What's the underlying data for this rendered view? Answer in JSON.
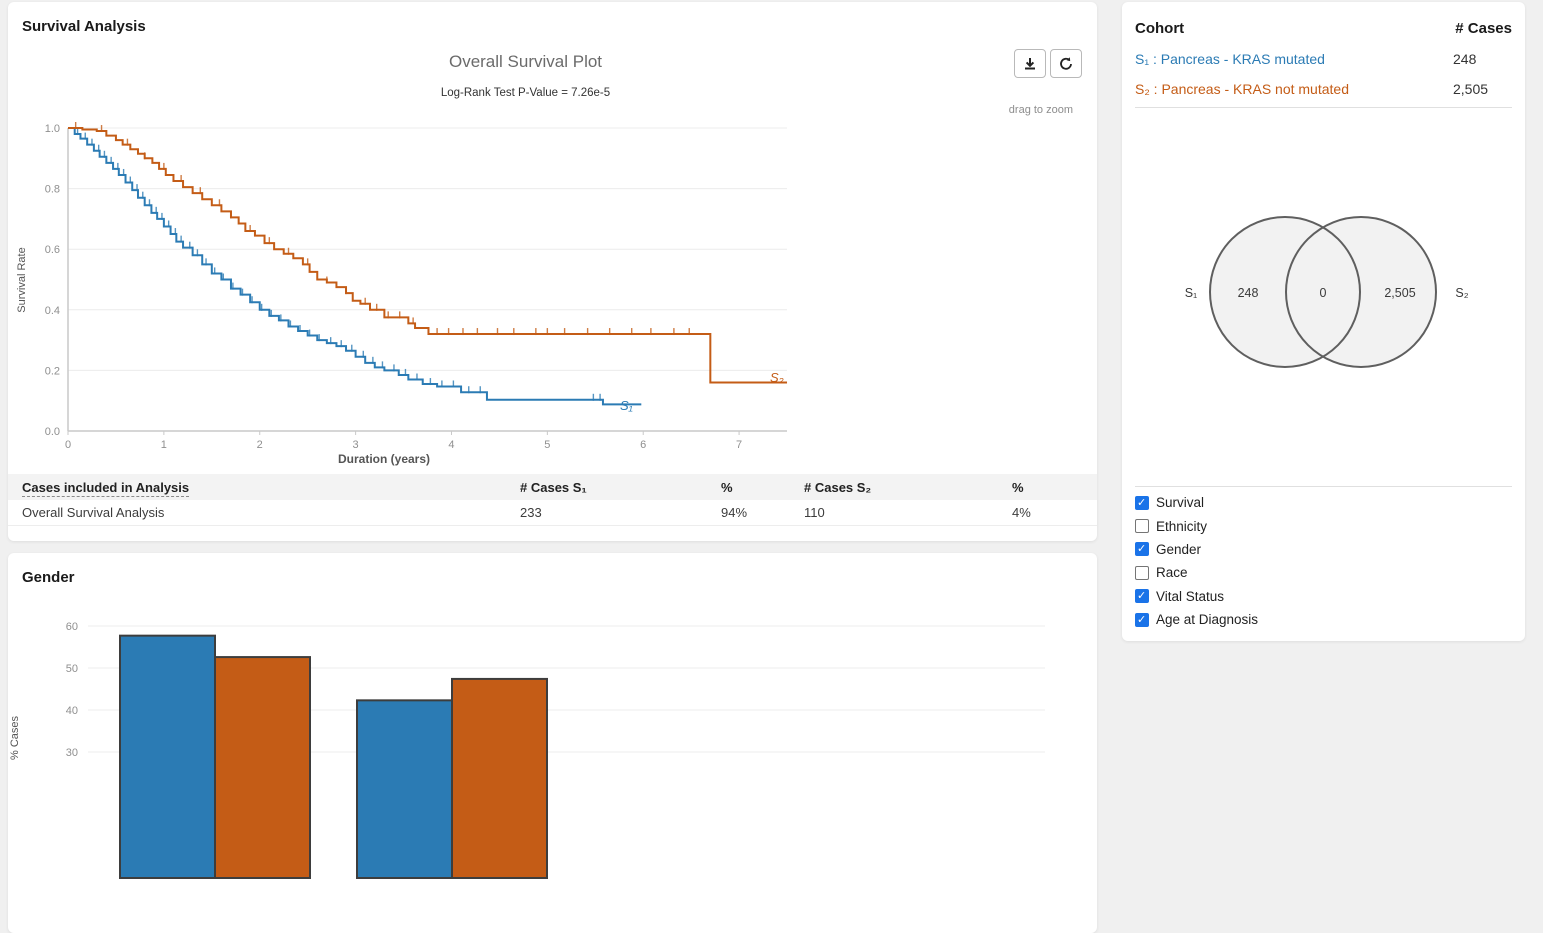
{
  "colors": {
    "s1": "#2b7bb4",
    "s2": "#c45c16",
    "checkbox_checked": "#1a73e8",
    "page_bg": "#f0f0f0",
    "table_header_bg": "#f3f3f3"
  },
  "survival_panel": {
    "title": "Survival Analysis",
    "plot_title": "Overall Survival Plot",
    "pvalue": "Log-Rank Test P-Value = 7.26e-5",
    "drag_hint": "drag to zoom",
    "xlabel": "Duration (years)",
    "ylabel": "Survival Rate"
  },
  "cases_table": {
    "headers": [
      "Cases included in Analysis",
      "# Cases S₁",
      "%",
      "# Cases S₂",
      "%"
    ],
    "rows": [
      [
        "Overall Survival Analysis",
        "233",
        "94%",
        "110",
        "4%"
      ]
    ]
  },
  "gender_panel": {
    "title": "Gender"
  },
  "cohort_panel": {
    "title": "Cohort",
    "cases_header": "# Cases",
    "rows": [
      {
        "label": "S₁ : Pancreas - KRAS mutated",
        "count": "248"
      },
      {
        "label": "S₂ : Pancreas - KRAS not mutated",
        "count": "2,505"
      }
    ]
  },
  "filters": {
    "items": [
      {
        "label": "Survival",
        "checked": true
      },
      {
        "label": "Ethnicity",
        "checked": false
      },
      {
        "label": "Gender",
        "checked": true
      },
      {
        "label": "Race",
        "checked": false
      },
      {
        "label": "Vital Status",
        "checked": true
      },
      {
        "label": "Age at Diagnosis",
        "checked": true
      }
    ]
  },
  "chart_data": [
    {
      "id": "overall-survival",
      "type": "line",
      "subtype": "kaplan-meier-step",
      "title": "Overall Survival Plot",
      "subtitle": "Log-Rank Test P-Value = 7.26e-5",
      "xlabel": "Duration (years)",
      "ylabel": "Survival Rate",
      "xlim": [
        0,
        7.5
      ],
      "ylim": [
        0,
        1.0
      ],
      "xticks": [
        0,
        1,
        2,
        3,
        4,
        5,
        6,
        7
      ],
      "yticks": [
        0.0,
        0.2,
        0.4,
        0.6,
        0.8,
        1.0
      ],
      "grid": true,
      "legend_position": "on-curve-end",
      "series": [
        {
          "name": "S₁",
          "color": "#2b7bb4",
          "end_x": 5.98,
          "steps": [
            [
              0,
              1.0
            ],
            [
              0.07,
              0.98
            ],
            [
              0.13,
              0.965
            ],
            [
              0.2,
              0.945
            ],
            [
              0.27,
              0.925
            ],
            [
              0.33,
              0.905
            ],
            [
              0.4,
              0.885
            ],
            [
              0.47,
              0.865
            ],
            [
              0.53,
              0.845
            ],
            [
              0.6,
              0.82
            ],
            [
              0.67,
              0.795
            ],
            [
              0.73,
              0.77
            ],
            [
              0.8,
              0.745
            ],
            [
              0.87,
              0.72
            ],
            [
              0.93,
              0.7
            ],
            [
              1.0,
              0.675
            ],
            [
              1.07,
              0.65
            ],
            [
              1.13,
              0.625
            ],
            [
              1.2,
              0.605
            ],
            [
              1.3,
              0.58
            ],
            [
              1.4,
              0.55
            ],
            [
              1.5,
              0.52
            ],
            [
              1.6,
              0.5
            ],
            [
              1.7,
              0.47
            ],
            [
              1.8,
              0.45
            ],
            [
              1.9,
              0.425
            ],
            [
              2.0,
              0.4
            ],
            [
              2.1,
              0.38
            ],
            [
              2.2,
              0.365
            ],
            [
              2.3,
              0.345
            ],
            [
              2.4,
              0.33
            ],
            [
              2.5,
              0.315
            ],
            [
              2.6,
              0.3
            ],
            [
              2.7,
              0.29
            ],
            [
              2.8,
              0.28
            ],
            [
              2.9,
              0.265
            ],
            [
              3.0,
              0.245
            ],
            [
              3.1,
              0.225
            ],
            [
              3.2,
              0.21
            ],
            [
              3.3,
              0.2
            ],
            [
              3.45,
              0.185
            ],
            [
              3.55,
              0.17
            ],
            [
              3.7,
              0.155
            ],
            [
              3.85,
              0.147
            ],
            [
              4.1,
              0.128
            ],
            [
              4.37,
              0.103
            ],
            [
              5.58,
              0.088
            ]
          ],
          "censor_x": [
            0.1,
            0.18,
            0.25,
            0.32,
            0.38,
            0.45,
            0.52,
            0.58,
            0.65,
            0.72,
            0.78,
            0.85,
            0.92,
            0.98,
            1.05,
            1.12,
            1.18,
            1.27,
            1.35,
            1.44,
            1.53,
            1.62,
            1.72,
            1.82,
            1.92,
            2.02,
            2.12,
            2.22,
            2.32,
            2.42,
            2.52,
            2.62,
            2.74,
            2.85,
            2.96,
            3.08,
            3.18,
            3.28,
            3.4,
            3.52,
            3.64,
            3.78,
            3.9,
            4.02,
            4.18,
            4.3,
            5.48,
            5.55
          ]
        },
        {
          "name": "S₂",
          "color": "#c45c16",
          "end_x": 7.5,
          "steps": [
            [
              0,
              1.0
            ],
            [
              0.15,
              0.995
            ],
            [
              0.3,
              0.99
            ],
            [
              0.4,
              0.975
            ],
            [
              0.5,
              0.96
            ],
            [
              0.57,
              0.945
            ],
            [
              0.65,
              0.93
            ],
            [
              0.73,
              0.915
            ],
            [
              0.8,
              0.9
            ],
            [
              0.88,
              0.885
            ],
            [
              0.95,
              0.865
            ],
            [
              1.02,
              0.845
            ],
            [
              1.1,
              0.825
            ],
            [
              1.2,
              0.805
            ],
            [
              1.3,
              0.785
            ],
            [
              1.4,
              0.765
            ],
            [
              1.5,
              0.745
            ],
            [
              1.6,
              0.725
            ],
            [
              1.7,
              0.705
            ],
            [
              1.78,
              0.685
            ],
            [
              1.85,
              0.66
            ],
            [
              1.95,
              0.645
            ],
            [
              2.05,
              0.62
            ],
            [
              2.15,
              0.6
            ],
            [
              2.25,
              0.585
            ],
            [
              2.35,
              0.57
            ],
            [
              2.45,
              0.55
            ],
            [
              2.52,
              0.525
            ],
            [
              2.6,
              0.5
            ],
            [
              2.7,
              0.49
            ],
            [
              2.8,
              0.475
            ],
            [
              2.9,
              0.455
            ],
            [
              2.97,
              0.43
            ],
            [
              3.05,
              0.42
            ],
            [
              3.15,
              0.4
            ],
            [
              3.3,
              0.375
            ],
            [
              3.55,
              0.355
            ],
            [
              3.62,
              0.34
            ],
            [
              3.76,
              0.32
            ],
            [
              6.7,
              0.16
            ]
          ],
          "censor_x": [
            0.08,
            0.35,
            0.62,
            0.8,
            1.0,
            1.18,
            1.38,
            1.58,
            1.7,
            1.9,
            2.1,
            2.3,
            2.5,
            2.7,
            2.9,
            3.1,
            3.22,
            3.34,
            3.46,
            3.6,
            3.85,
            3.97,
            4.12,
            4.27,
            4.48,
            4.65,
            4.88,
            5.0,
            5.18,
            5.42,
            5.65,
            5.88,
            6.08,
            6.32,
            6.48
          ]
        }
      ]
    },
    {
      "id": "cohort-venn",
      "type": "venn",
      "left_label": "S₁",
      "right_label": "S₂",
      "s1_only": "248",
      "intersection": "0",
      "s2_only": "2,505"
    },
    {
      "id": "gender-bars",
      "type": "bar",
      "title": "Gender",
      "ylabel": "% Cases",
      "categories": [
        "",
        ""
      ],
      "series": [
        {
          "name": "S₁",
          "color": "#2b7bb4",
          "values": [
            57.7,
            42.3
          ]
        },
        {
          "name": "S₂",
          "color": "#c45c16",
          "values": [
            52.6,
            47.4
          ]
        }
      ],
      "yticks_visible": [
        30,
        40,
        50,
        60
      ],
      "grid": true
    }
  ]
}
